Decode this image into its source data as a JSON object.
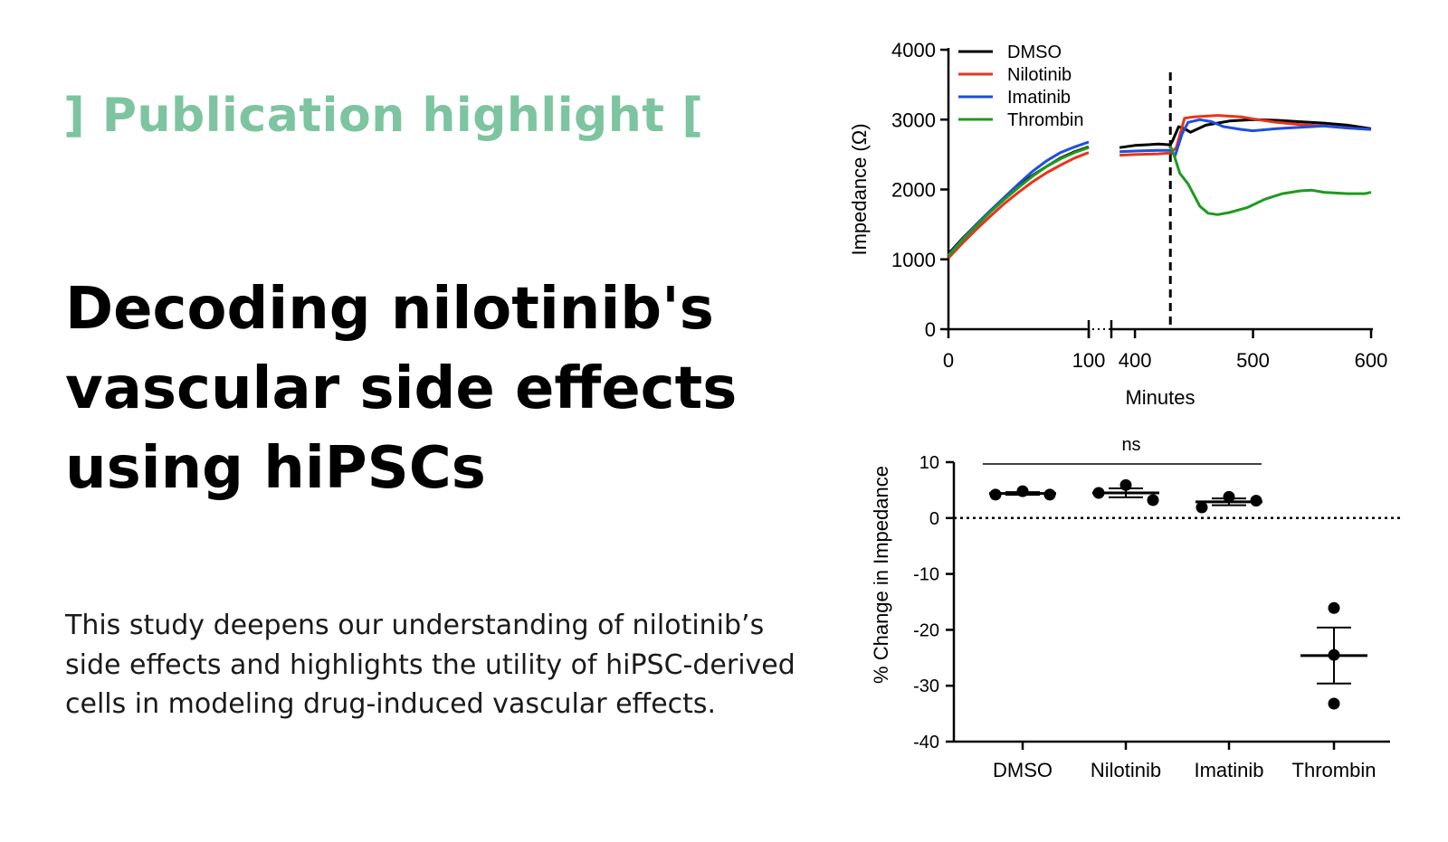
{
  "tag": "] Publication highlight [",
  "headline": [
    "Decoding nilotinib's",
    "vascular side effects",
    "using hiPSCs"
  ],
  "description": [
    "This study deepens our understanding of nilotinib’s",
    "side effects and highlights the utility of hiPSC-derived",
    "cells in modeling drug-induced vascular effects."
  ],
  "colors": {
    "accent": "#7dc4a0",
    "dmso": "#000000",
    "nilotinib": "#e8341c",
    "imatinib": "#1f4ede",
    "thrombin": "#1f9a1f"
  },
  "chart_data": [
    {
      "type": "line",
      "title": "",
      "xlabel": "Minutes",
      "ylabel": "Impedance (Ω)",
      "ylim": [
        0,
        4000
      ],
      "yticks": [
        "0",
        "1000",
        "2000",
        "3000",
        "4000"
      ],
      "x_segments": [
        {
          "range": [
            0,
            100
          ],
          "ticks": [
            "0",
            "100"
          ]
        },
        {
          "range": [
            380,
            600
          ],
          "ticks": [
            "400",
            "500",
            "600"
          ]
        }
      ],
      "treatment_line_x": 430,
      "legend": [
        "DMSO",
        "Nilotinib",
        "Imatinib",
        "Thrombin"
      ],
      "series": [
        {
          "name": "DMSO",
          "color": "#000000",
          "seg1": [
            [
              0,
              1080
            ],
            [
              10,
              1300
            ],
            [
              20,
              1500
            ],
            [
              30,
              1700
            ],
            [
              40,
              1880
            ],
            [
              50,
              2050
            ],
            [
              60,
              2200
            ],
            [
              70,
              2330
            ],
            [
              80,
              2450
            ],
            [
              90,
              2540
            ],
            [
              100,
              2610
            ]
          ],
          "seg2": [
            [
              387,
              2600
            ],
            [
              400,
              2630
            ],
            [
              420,
              2650
            ],
            [
              430,
              2640
            ],
            [
              432,
              2700
            ],
            [
              437,
              2900
            ],
            [
              442,
              2870
            ],
            [
              447,
              2820
            ],
            [
              460,
              2920
            ],
            [
              480,
              2980
            ],
            [
              500,
              3000
            ],
            [
              520,
              2990
            ],
            [
              540,
              2970
            ],
            [
              560,
              2950
            ],
            [
              580,
              2920
            ],
            [
              600,
              2870
            ]
          ]
        },
        {
          "name": "Nilotinib",
          "color": "#e8341c",
          "seg1": [
            [
              0,
              1020
            ],
            [
              10,
              1230
            ],
            [
              20,
              1430
            ],
            [
              30,
              1620
            ],
            [
              40,
              1800
            ],
            [
              50,
              1960
            ],
            [
              60,
              2110
            ],
            [
              70,
              2240
            ],
            [
              80,
              2350
            ],
            [
              90,
              2450
            ],
            [
              100,
              2530
            ]
          ],
          "seg2": [
            [
              387,
              2490
            ],
            [
              400,
              2500
            ],
            [
              420,
              2510
            ],
            [
              430,
              2520
            ],
            [
              435,
              2600
            ],
            [
              442,
              3020
            ],
            [
              450,
              3040
            ],
            [
              470,
              3060
            ],
            [
              490,
              3040
            ],
            [
              500,
              3010
            ],
            [
              520,
              2960
            ],
            [
              540,
              2930
            ],
            [
              560,
              2910
            ],
            [
              580,
              2880
            ],
            [
              600,
              2860
            ]
          ]
        },
        {
          "name": "Imatinib",
          "color": "#1f4ede",
          "seg1": [
            [
              0,
              1060
            ],
            [
              10,
              1290
            ],
            [
              20,
              1500
            ],
            [
              30,
              1700
            ],
            [
              40,
              1890
            ],
            [
              50,
              2080
            ],
            [
              60,
              2260
            ],
            [
              70,
              2410
            ],
            [
              80,
              2530
            ],
            [
              90,
              2610
            ],
            [
              100,
              2680
            ]
          ],
          "seg2": [
            [
              387,
              2540
            ],
            [
              400,
              2550
            ],
            [
              420,
              2560
            ],
            [
              430,
              2560
            ],
            [
              434,
              2480
            ],
            [
              440,
              2800
            ],
            [
              445,
              2960
            ],
            [
              455,
              3000
            ],
            [
              465,
              2970
            ],
            [
              475,
              2900
            ],
            [
              490,
              2860
            ],
            [
              500,
              2840
            ],
            [
              520,
              2870
            ],
            [
              540,
              2890
            ],
            [
              560,
              2910
            ],
            [
              580,
              2880
            ],
            [
              600,
              2860
            ]
          ]
        },
        {
          "name": "Thrombin",
          "color": "#1f9a1f",
          "seg1": [
            [
              0,
              1050
            ],
            [
              10,
              1280
            ],
            [
              20,
              1480
            ],
            [
              30,
              1680
            ],
            [
              40,
              1860
            ],
            [
              50,
              2030
            ],
            [
              60,
              2190
            ],
            [
              70,
              2330
            ],
            [
              80,
              2440
            ],
            [
              90,
              2530
            ],
            [
              100,
              2600
            ]
          ],
          "seg2": [
            [
              430,
              2620
            ],
            [
              433,
              2500
            ],
            [
              438,
              2230
            ],
            [
              445,
              2080
            ],
            [
              455,
              1760
            ],
            [
              462,
              1660
            ],
            [
              470,
              1640
            ],
            [
              480,
              1670
            ],
            [
              495,
              1740
            ],
            [
              510,
              1860
            ],
            [
              525,
              1940
            ],
            [
              540,
              1980
            ],
            [
              550,
              1990
            ],
            [
              560,
              1960
            ],
            [
              580,
              1940
            ],
            [
              595,
              1940
            ],
            [
              600,
              1960
            ]
          ]
        }
      ]
    },
    {
      "type": "scatter",
      "title": "",
      "xlabel": "",
      "ylabel": "% Change in Impedance",
      "ylim": [
        -40,
        10
      ],
      "yticks": [
        "10",
        "0",
        "-10",
        "-20",
        "-30",
        "-40"
      ],
      "categories": [
        "DMSO",
        "Nilotinib",
        "Imatinib",
        "Thrombin"
      ],
      "points": [
        [
          4.2,
          4.8,
          4.2
        ],
        [
          4.5,
          5.9,
          3.2
        ],
        [
          1.9,
          3.8,
          3.1
        ],
        [
          -16.1,
          -24.5,
          -33.2
        ]
      ],
      "means": [
        4.4,
        4.5,
        2.9,
        -24.6
      ],
      "errors": [
        0.25,
        0.8,
        0.6,
        5.0
      ],
      "significance": {
        "label": "ns",
        "from": "DMSO",
        "to": "Imatinib"
      },
      "reference_line": 0
    }
  ]
}
